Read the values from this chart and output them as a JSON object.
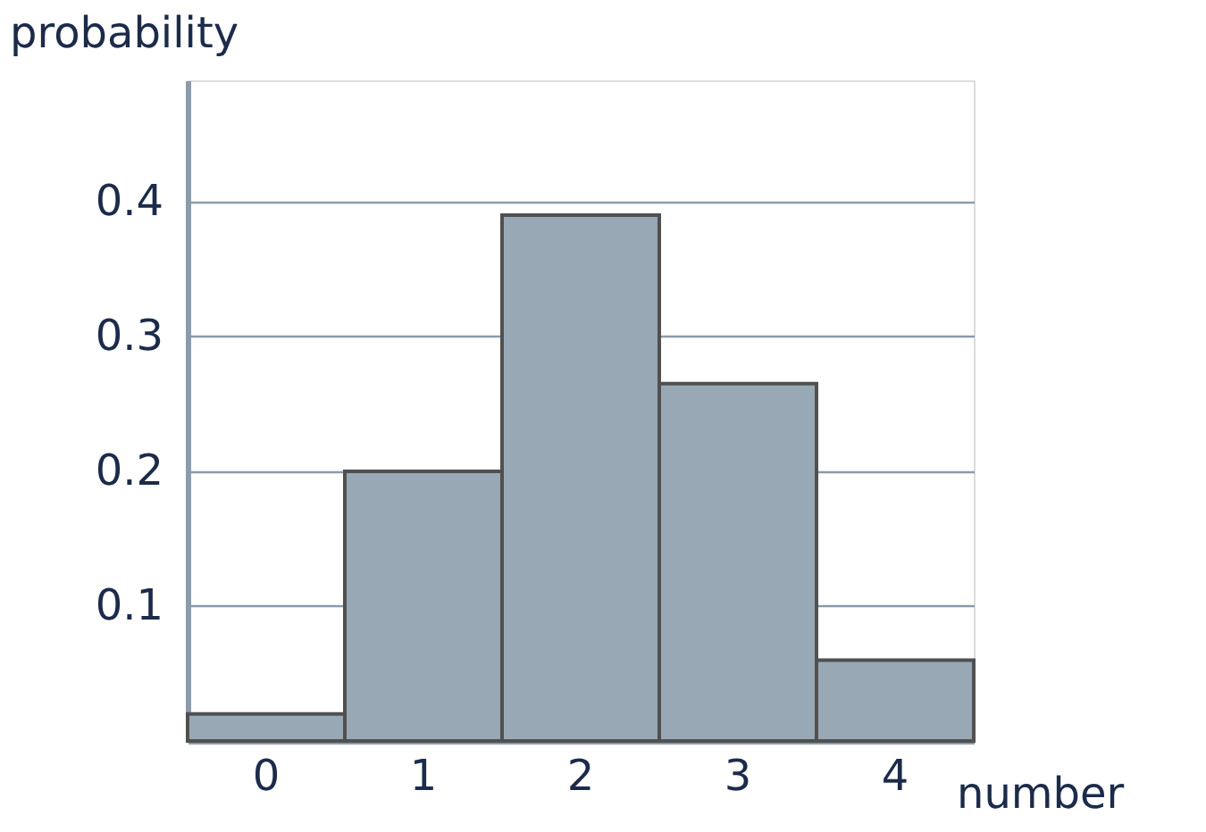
{
  "chart_data": {
    "type": "bar",
    "xlabel": "number",
    "ylabel": "probability",
    "categories": [
      "0",
      "1",
      "2",
      "3",
      "4"
    ],
    "values": [
      0.02,
      0.2,
      0.39,
      0.265,
      0.06
    ],
    "color": "#98a8b4",
    "ylim": [
      0,
      0.49
    ],
    "yticks": [
      0.1,
      0.2,
      0.3,
      0.4
    ],
    "grid": "y"
  }
}
